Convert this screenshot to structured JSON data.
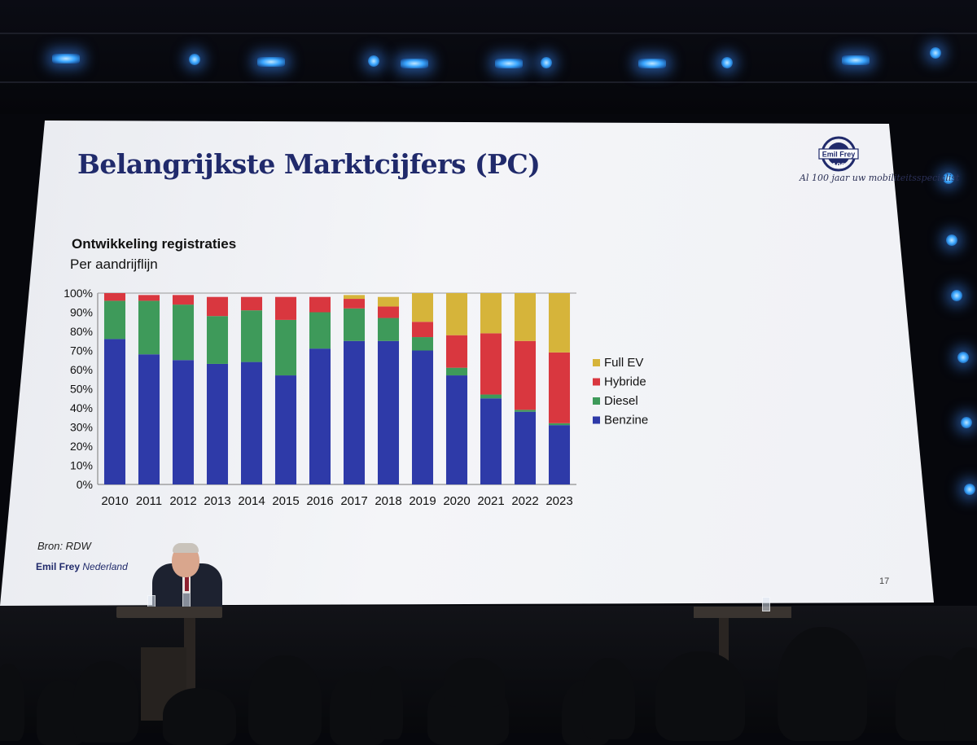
{
  "slide": {
    "title": "Belangrijkste Marktcijfers (PC)",
    "logo_text": "Emil Frey",
    "logo_number": "100",
    "logo_tagline": "Al 100 jaar uw mobiliteitsspecialist",
    "source": "Bron: RDW",
    "footer_brand_bold": "Emil Frey",
    "footer_brand_italic": "Nederland",
    "page_number": "17",
    "brand_color": "#202a6b"
  },
  "chart_data": {
    "type": "bar",
    "stacked": true,
    "percent_stacked": true,
    "title": "Ontwikkeling registraties",
    "subtitle": "Per aandrijflijn",
    "xlabel": "",
    "ylabel": "",
    "ylim": [
      0,
      100
    ],
    "y_ticks": [
      "0%",
      "10%",
      "20%",
      "30%",
      "40%",
      "50%",
      "60%",
      "70%",
      "80%",
      "90%",
      "100%"
    ],
    "grid": false,
    "legend_position": "right",
    "categories": [
      "2010",
      "2011",
      "2012",
      "2013",
      "2014",
      "2015",
      "2016",
      "2017",
      "2018",
      "2019",
      "2020",
      "2021",
      "2022",
      "2023"
    ],
    "series": [
      {
        "name": "Benzine",
        "color": "#2e3aa8",
        "values": [
          76,
          68,
          65,
          63,
          64,
          57,
          71,
          75,
          75,
          70,
          57,
          45,
          38,
          31
        ]
      },
      {
        "name": "Diesel",
        "color": "#3e9a5a",
        "values": [
          20,
          28,
          29,
          25,
          27,
          29,
          19,
          17,
          12,
          7,
          4,
          2,
          1,
          1
        ]
      },
      {
        "name": "Hybride",
        "color": "#d9373f",
        "values": [
          4,
          3,
          5,
          10,
          7,
          12,
          8,
          5,
          6,
          8,
          17,
          32,
          36,
          37
        ]
      },
      {
        "name": "Full EV",
        "color": "#d6b43a",
        "values": [
          0,
          0,
          0,
          0,
          0,
          0,
          0,
          2,
          5,
          15,
          22,
          21,
          25,
          31
        ]
      }
    ]
  }
}
